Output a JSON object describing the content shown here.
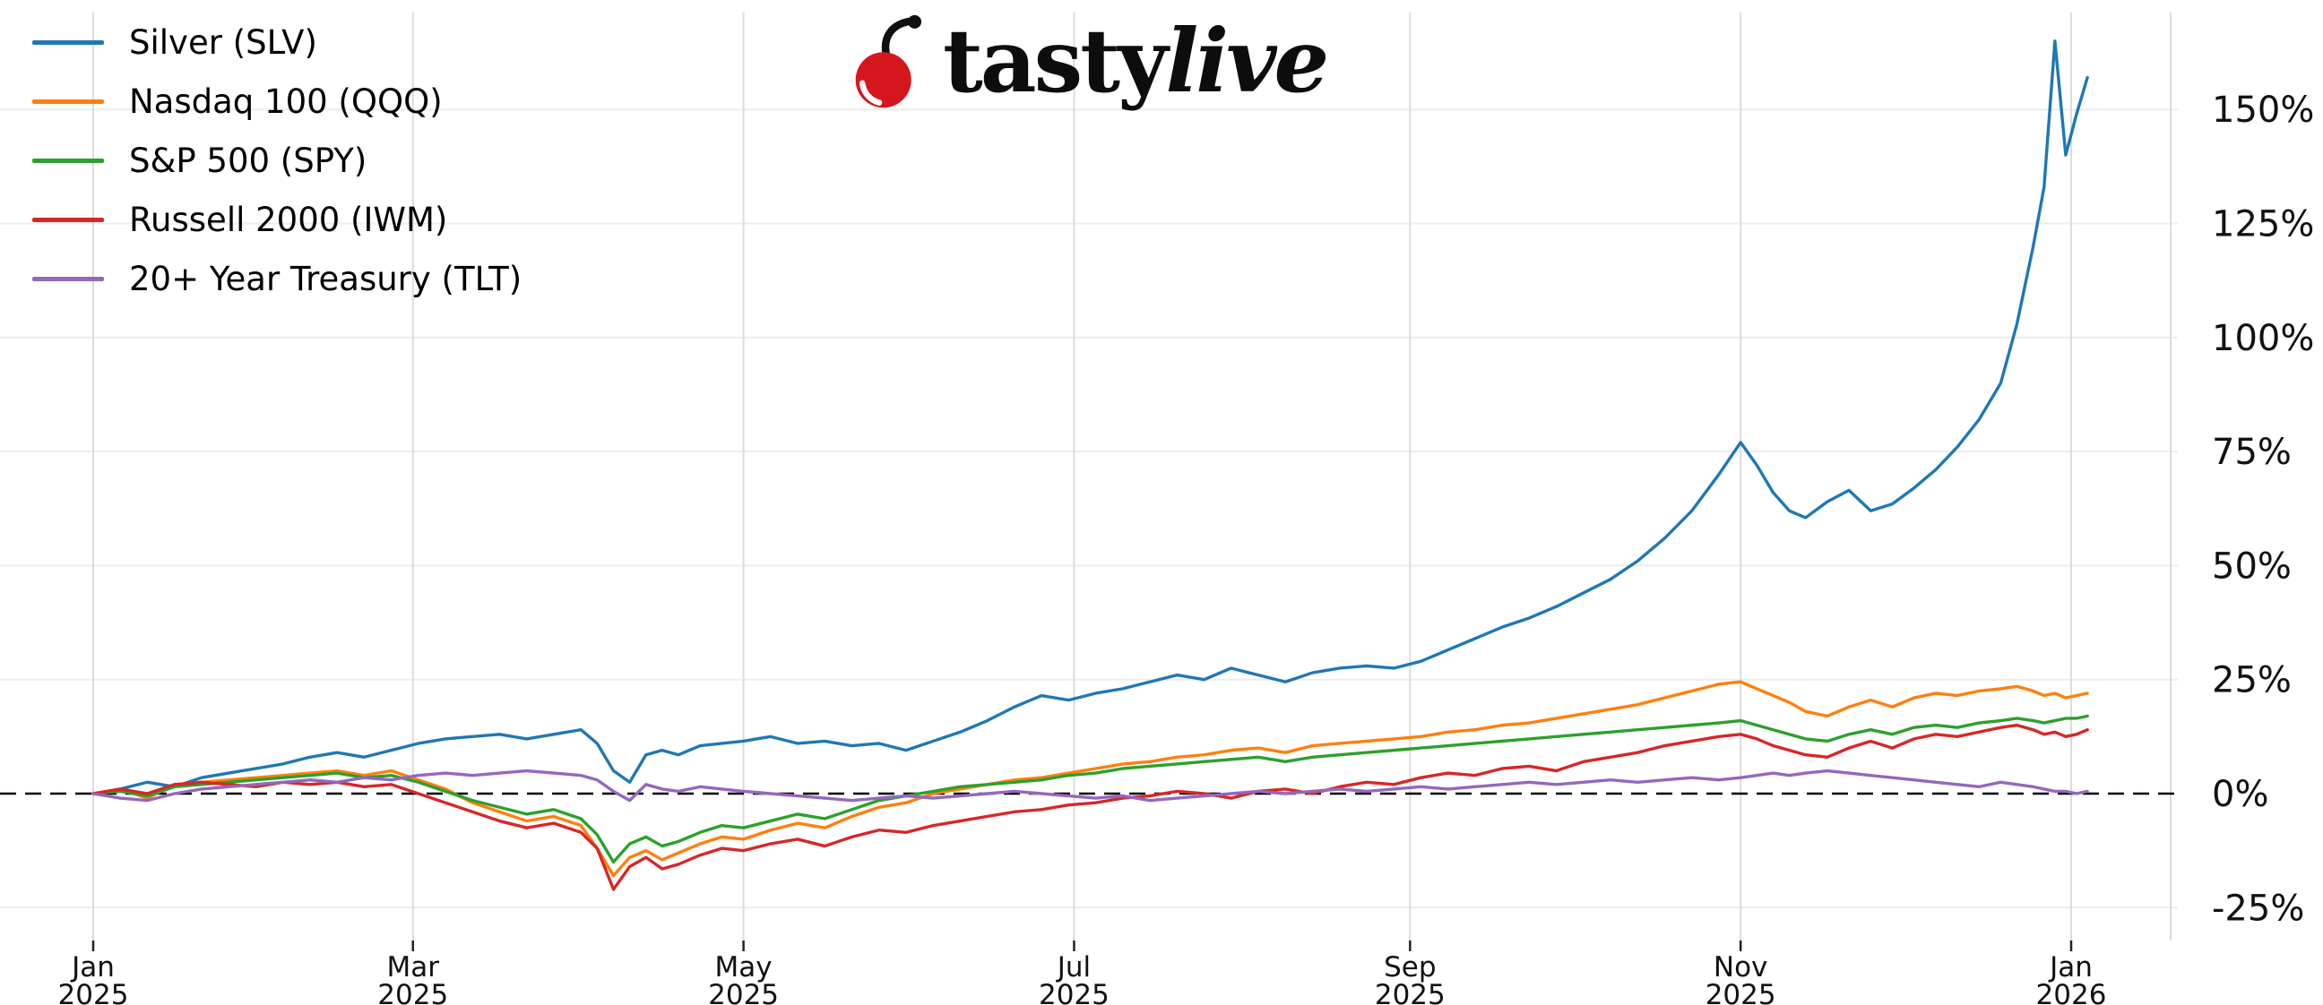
{
  "logo": {
    "brand_first": "tasty",
    "brand_second": "live",
    "cherry_color": "#d6161d",
    "stem_color": "#101010",
    "text_color": "#0d0d0d"
  },
  "chart_data": {
    "type": "line",
    "title": "",
    "xlabel": "",
    "ylabel": "",
    "grid": true,
    "legend_position": "upper-left",
    "background_color": "#ffffff",
    "zero_line": {
      "style": "dashed",
      "color": "#000000",
      "value": 0
    },
    "y_tick_suffix": "%",
    "y_ticks": [
      -25,
      0,
      25,
      50,
      75,
      100,
      125,
      150
    ],
    "ylim": [
      -32,
      171
    ],
    "x_unit": "days since 2025-01-01",
    "x_ticks": [
      {
        "day": 0,
        "month": "Jan",
        "year": "2025"
      },
      {
        "day": 59,
        "month": "Mar",
        "year": "2025"
      },
      {
        "day": 120,
        "month": "May",
        "year": "2025"
      },
      {
        "day": 181,
        "month": "Jul",
        "year": "2025"
      },
      {
        "day": 243,
        "month": "Sep",
        "year": "2025"
      },
      {
        "day": 304,
        "month": "Nov",
        "year": "2025"
      },
      {
        "day": 365,
        "month": "Jan",
        "year": "2026"
      }
    ],
    "x": [
      0,
      5,
      10,
      15,
      20,
      25,
      30,
      35,
      40,
      45,
      50,
      55,
      60,
      65,
      70,
      75,
      80,
      85,
      90,
      93,
      96,
      99,
      102,
      105,
      108,
      112,
      116,
      120,
      125,
      130,
      135,
      140,
      145,
      150,
      155,
      160,
      165,
      170,
      175,
      180,
      185,
      190,
      195,
      200,
      205,
      210,
      215,
      220,
      225,
      230,
      235,
      240,
      245,
      250,
      255,
      260,
      265,
      270,
      275,
      280,
      285,
      290,
      295,
      300,
      304,
      307,
      310,
      313,
      316,
      320,
      324,
      328,
      332,
      336,
      340,
      344,
      348,
      352,
      355,
      358,
      360,
      362,
      364,
      366,
      368
    ],
    "series": [
      {
        "label": "Silver (SLV)",
        "ticker": "SLV",
        "color": "#1f77b4",
        "values": [
          0,
          1,
          2.5,
          1.5,
          3.5,
          4.5,
          5.5,
          6.5,
          8,
          9,
          8,
          9.5,
          11,
          12,
          12.5,
          13,
          12,
          13,
          14,
          11,
          5,
          2.5,
          8.5,
          9.5,
          8.5,
          10.5,
          11,
          11.5,
          12.5,
          11,
          11.5,
          10.5,
          11,
          9.5,
          11.5,
          13.5,
          16,
          19,
          21.5,
          20.5,
          22,
          23,
          24.5,
          26,
          25,
          27.5,
          26,
          24.5,
          26.5,
          27.5,
          28,
          27.5,
          29,
          31.5,
          34,
          36.5,
          38.5,
          41,
          44,
          47,
          51,
          56,
          62,
          70,
          77,
          72,
          66,
          62,
          60.5,
          64,
          66.5,
          62,
          63.5,
          67,
          71,
          76,
          82,
          90,
          103,
          120,
          133,
          165,
          140,
          149,
          157
        ]
      },
      {
        "label": "Nasdaq 100 (QQQ)",
        "ticker": "QQQ",
        "color": "#ff7f0e",
        "values": [
          0,
          1,
          -1,
          2,
          2.5,
          3,
          3.5,
          4,
          4.5,
          5,
          4,
          5,
          3,
          1,
          -2,
          -4,
          -6,
          -5,
          -7,
          -12,
          -18,
          -14,
          -12.5,
          -14.5,
          -13,
          -11,
          -9.5,
          -10,
          -8,
          -6.5,
          -7.5,
          -5,
          -3,
          -2,
          0,
          1,
          2,
          3,
          3.5,
          4.5,
          5.5,
          6.5,
          7,
          8,
          8.5,
          9.5,
          10,
          9,
          10.5,
          11,
          11.5,
          12,
          12.5,
          13.5,
          14,
          15,
          15.5,
          16.5,
          17.5,
          18.5,
          19.5,
          21,
          22.5,
          24,
          24.5,
          23,
          21.5,
          20,
          18,
          17,
          19,
          20.5,
          19,
          21,
          22,
          21.5,
          22.5,
          23,
          23.5,
          22.5,
          21.5,
          22,
          21,
          21.5,
          22
        ]
      },
      {
        "label": "S&P 500 (SPY)",
        "ticker": "SPY",
        "color": "#2ca02c",
        "values": [
          0,
          0.5,
          -0.5,
          1.5,
          2,
          2.5,
          3,
          3.5,
          4,
          4.5,
          3.5,
          4,
          2.5,
          0.5,
          -1.5,
          -3,
          -4.5,
          -3.5,
          -5.5,
          -9,
          -15,
          -11,
          -9.5,
          -11.5,
          -10.5,
          -8.5,
          -7,
          -7.5,
          -6,
          -4.5,
          -5.5,
          -3.5,
          -1.5,
          -0.5,
          0.5,
          1.5,
          2,
          2.5,
          3,
          4,
          4.5,
          5.5,
          6,
          6.5,
          7,
          7.5,
          8,
          7,
          8,
          8.5,
          9,
          9.5,
          10,
          10.5,
          11,
          11.5,
          12,
          12.5,
          13,
          13.5,
          14,
          14.5,
          15,
          15.5,
          16,
          15,
          14,
          13,
          12,
          11.5,
          13,
          14,
          13,
          14.5,
          15,
          14.5,
          15.5,
          16,
          16.5,
          16,
          15.5,
          16,
          16.5,
          16.5,
          17
        ]
      },
      {
        "label": "Russell 2000 (IWM)",
        "ticker": "IWM",
        "color": "#d62728",
        "values": [
          0,
          1,
          0,
          2,
          2.5,
          2,
          1.5,
          2.5,
          2,
          2.5,
          1.5,
          2,
          0,
          -2,
          -4,
          -6,
          -7.5,
          -6.5,
          -8.5,
          -12,
          -21,
          -16,
          -14,
          -16.5,
          -15.5,
          -13.5,
          -12,
          -12.5,
          -11,
          -10,
          -11.5,
          -9.5,
          -8,
          -8.5,
          -7,
          -6,
          -5,
          -4,
          -3.5,
          -2.5,
          -2,
          -1,
          -0.5,
          0.5,
          0,
          -1,
          0.5,
          1,
          0,
          1.5,
          2.5,
          2,
          3.5,
          4.5,
          4,
          5.5,
          6,
          5,
          7,
          8,
          9,
          10.5,
          11.5,
          12.5,
          13,
          12,
          10.5,
          9.5,
          8.5,
          8,
          10,
          11.5,
          10,
          12,
          13,
          12.5,
          13.5,
          14.5,
          15,
          14,
          13,
          13.5,
          12.5,
          13,
          14
        ]
      },
      {
        "label": "20+ Year Treasury (TLT)",
        "ticker": "TLT",
        "color": "#9467bd",
        "values": [
          0,
          -1,
          -1.5,
          0,
          1,
          1.5,
          2,
          2.5,
          3,
          2.5,
          3.5,
          3,
          4,
          4.5,
          4,
          4.5,
          5,
          4.5,
          4,
          3,
          0.5,
          -1.5,
          2,
          1,
          0.5,
          1.5,
          1,
          0.5,
          0,
          -0.5,
          -1,
          -1.5,
          -1,
          -0.5,
          -1,
          -0.5,
          0,
          0.5,
          0,
          -0.5,
          -1,
          -0.5,
          -1.5,
          -1,
          -0.5,
          0,
          0.5,
          0,
          0.5,
          1,
          0.5,
          1,
          1.5,
          1,
          1.5,
          2,
          2.5,
          2,
          2.5,
          3,
          2.5,
          3,
          3.5,
          3,
          3.5,
          4,
          4.5,
          4,
          4.5,
          5,
          4.5,
          4,
          3.5,
          3,
          2.5,
          2,
          1.5,
          2.5,
          2,
          1.5,
          1,
          0.5,
          0.5,
          0,
          0.5
        ]
      }
    ]
  }
}
